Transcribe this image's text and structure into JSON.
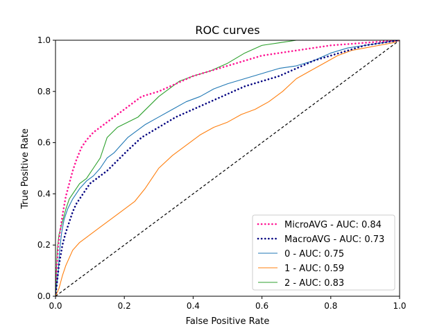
{
  "chart_data": {
    "type": "line",
    "title": "ROC curves",
    "xlabel": "False Positive Rate",
    "ylabel": "True Positive Rate",
    "xlim": [
      0,
      1
    ],
    "ylim": [
      0,
      1
    ],
    "xticks": [
      "0.0",
      "0.2",
      "0.4",
      "0.6",
      "0.8",
      "1.0"
    ],
    "yticks": [
      "0.0",
      "0.2",
      "0.4",
      "0.6",
      "0.8",
      "1.0"
    ],
    "grid": false,
    "legend_position": "bottom-right",
    "series": [
      {
        "name": "MicroAVG - AUC: 0.84",
        "color": "#ff1493",
        "style": "dotted",
        "x": [
          0.0,
          0.003,
          0.008,
          0.015,
          0.022,
          0.03,
          0.04,
          0.05,
          0.06,
          0.075,
          0.09,
          0.11,
          0.13,
          0.16,
          0.19,
          0.22,
          0.25,
          0.3,
          0.35,
          0.4,
          0.45,
          0.5,
          0.55,
          0.6,
          0.65,
          0.7,
          0.75,
          0.8,
          0.85,
          0.9,
          0.95,
          1.0
        ],
        "y": [
          0.0,
          0.1,
          0.2,
          0.27,
          0.33,
          0.39,
          0.44,
          0.49,
          0.53,
          0.58,
          0.61,
          0.64,
          0.66,
          0.69,
          0.72,
          0.75,
          0.78,
          0.8,
          0.83,
          0.86,
          0.88,
          0.9,
          0.92,
          0.94,
          0.95,
          0.96,
          0.97,
          0.98,
          0.985,
          0.99,
          0.995,
          1.0
        ]
      },
      {
        "name": "MacroAVG - AUC: 0.73",
        "color": "#000080",
        "style": "dotted",
        "x": [
          0.0,
          0.01,
          0.02,
          0.03,
          0.04,
          0.05,
          0.06,
          0.08,
          0.1,
          0.12,
          0.15,
          0.18,
          0.21,
          0.25,
          0.3,
          0.35,
          0.4,
          0.45,
          0.5,
          0.55,
          0.6,
          0.65,
          0.7,
          0.75,
          0.8,
          0.85,
          0.9,
          0.95,
          1.0
        ],
        "y": [
          0.0,
          0.12,
          0.2,
          0.25,
          0.29,
          0.33,
          0.36,
          0.4,
          0.44,
          0.46,
          0.49,
          0.53,
          0.57,
          0.62,
          0.66,
          0.7,
          0.73,
          0.76,
          0.79,
          0.82,
          0.84,
          0.86,
          0.89,
          0.92,
          0.94,
          0.96,
          0.98,
          0.99,
          1.0
        ]
      },
      {
        "name": "0 - AUC: 0.75",
        "color": "#1f77b4",
        "style": "solid",
        "x": [
          0.0,
          0.008,
          0.012,
          0.018,
          0.025,
          0.035,
          0.05,
          0.07,
          0.09,
          0.11,
          0.13,
          0.15,
          0.17,
          0.19,
          0.21,
          0.23,
          0.26,
          0.3,
          0.34,
          0.38,
          0.42,
          0.46,
          0.5,
          0.55,
          0.6,
          0.65,
          0.7,
          0.75,
          0.8,
          0.85,
          0.9,
          0.95,
          1.0
        ],
        "y": [
          0.0,
          0.1,
          0.18,
          0.25,
          0.3,
          0.34,
          0.38,
          0.42,
          0.45,
          0.47,
          0.5,
          0.54,
          0.56,
          0.59,
          0.62,
          0.64,
          0.67,
          0.7,
          0.73,
          0.76,
          0.78,
          0.81,
          0.83,
          0.85,
          0.87,
          0.89,
          0.9,
          0.92,
          0.95,
          0.97,
          0.98,
          0.99,
          1.0
        ]
      },
      {
        "name": "1 - AUC: 0.59",
        "color": "#ff7f0e",
        "style": "solid",
        "x": [
          0.0,
          0.01,
          0.02,
          0.03,
          0.05,
          0.07,
          0.1,
          0.13,
          0.16,
          0.2,
          0.23,
          0.26,
          0.3,
          0.34,
          0.38,
          0.42,
          0.46,
          0.5,
          0.54,
          0.58,
          0.62,
          0.66,
          0.7,
          0.74,
          0.78,
          0.82,
          0.86,
          0.9,
          0.94,
          0.98,
          1.0
        ],
        "y": [
          0.0,
          0.03,
          0.08,
          0.12,
          0.18,
          0.21,
          0.24,
          0.27,
          0.3,
          0.34,
          0.37,
          0.42,
          0.5,
          0.55,
          0.59,
          0.63,
          0.66,
          0.68,
          0.71,
          0.73,
          0.76,
          0.8,
          0.85,
          0.88,
          0.91,
          0.94,
          0.96,
          0.97,
          0.98,
          0.99,
          1.0
        ]
      },
      {
        "name": "2 - AUC: 0.83",
        "color": "#2ca02c",
        "style": "solid",
        "x": [
          0.0,
          0.005,
          0.01,
          0.02,
          0.03,
          0.04,
          0.05,
          0.07,
          0.09,
          0.11,
          0.13,
          0.15,
          0.18,
          0.21,
          0.24,
          0.27,
          0.3,
          0.33,
          0.36,
          0.4,
          0.45,
          0.5,
          0.55,
          0.6,
          0.65,
          0.7,
          0.75,
          1.0
        ],
        "y": [
          0.0,
          0.18,
          0.24,
          0.29,
          0.34,
          0.38,
          0.4,
          0.44,
          0.46,
          0.5,
          0.54,
          0.62,
          0.66,
          0.68,
          0.7,
          0.74,
          0.78,
          0.81,
          0.84,
          0.86,
          0.88,
          0.91,
          0.95,
          0.98,
          0.99,
          1.0,
          1.0,
          1.0
        ]
      }
    ],
    "reference_line": {
      "x": [
        0,
        1
      ],
      "y": [
        0,
        1
      ],
      "color": "#000000",
      "style": "dashed"
    }
  }
}
